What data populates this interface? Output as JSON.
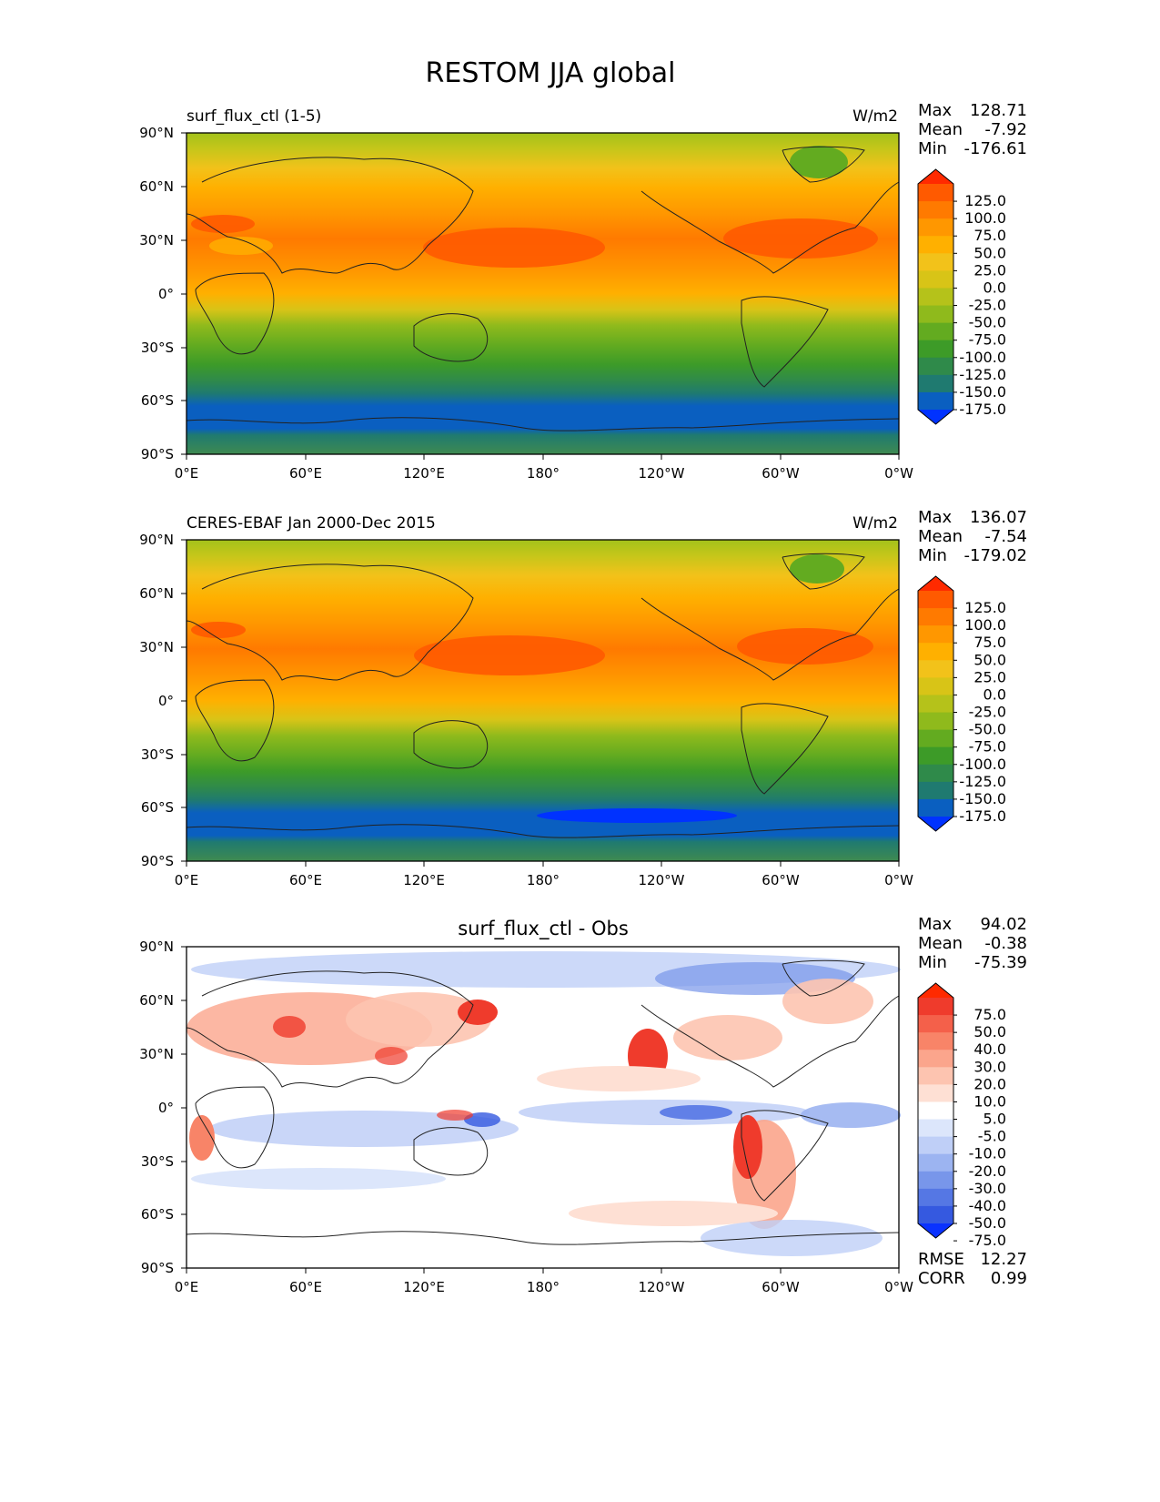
{
  "figure": {
    "title": "RESTOM JJA global"
  },
  "axes": {
    "xticks": [
      "0°E",
      "60°E",
      "120°E",
      "180°",
      "120°W",
      "60°W",
      "0°W"
    ],
    "yticks": [
      "90°N",
      "60°N",
      "30°N",
      "0°",
      "30°S",
      "60°S",
      "90°S"
    ]
  },
  "chart_data": [
    {
      "type": "heatmap",
      "title_left": "surf_flux_ctl (1-5)",
      "units": "W/m2",
      "stats": {
        "max_label": "Max",
        "max": "128.71",
        "mean_label": "Mean",
        "mean": "-7.92",
        "min_label": "Min",
        "min": "-176.61"
      },
      "colorbar": {
        "labels": [
          "125.0",
          "100.0",
          "75.0",
          "50.0",
          "25.0",
          "0.0",
          "-25.0",
          "-50.0",
          "-75.0",
          "-100.0",
          "-125.0",
          "-150.0",
          "-175.0"
        ],
        "colors": [
          "#ff2a00",
          "#ff5a00",
          "#ff7a00",
          "#ff9700",
          "#ffb000",
          "#f2c21a",
          "#d8c417",
          "#b5c21a",
          "#8fba1c",
          "#63ab20",
          "#3d9b28",
          "#2f8a4a",
          "#1f7a70",
          "#0a5fc0",
          "#0032ff"
        ]
      },
      "x_range": [
        0,
        360
      ],
      "y_range": [
        -90,
        90
      ]
    },
    {
      "type": "heatmap",
      "title_left": "CERES-EBAF Jan 2000-Dec 2015",
      "units": "W/m2",
      "stats": {
        "max_label": "Max",
        "max": "136.07",
        "mean_label": "Mean",
        "mean": "-7.54",
        "min_label": "Min",
        "min": "-179.02"
      },
      "colorbar": {
        "labels": [
          "125.0",
          "100.0",
          "75.0",
          "50.0",
          "25.0",
          "0.0",
          "-25.0",
          "-50.0",
          "-75.0",
          "-100.0",
          "-125.0",
          "-150.0",
          "-175.0"
        ],
        "colors": [
          "#ff2a00",
          "#ff5a00",
          "#ff7a00",
          "#ff9700",
          "#ffb000",
          "#f2c21a",
          "#d8c417",
          "#b5c21a",
          "#8fba1c",
          "#63ab20",
          "#3d9b28",
          "#2f8a4a",
          "#1f7a70",
          "#0a5fc0",
          "#0032ff"
        ]
      },
      "x_range": [
        0,
        360
      ],
      "y_range": [
        -90,
        90
      ]
    },
    {
      "type": "heatmap",
      "title": "surf_flux_ctl - Obs",
      "stats": {
        "max_label": "Max",
        "max": "94.02",
        "mean_label": "Mean",
        "mean": "-0.38",
        "min_label": "Min",
        "min": "-75.39"
      },
      "colorbar": {
        "labels": [
          "75.0",
          "50.0",
          "40.0",
          "30.0",
          "20.0",
          "10.0",
          "5.0",
          "-5.0",
          "-10.0",
          "-20.0",
          "-30.0",
          "-40.0",
          "-50.0",
          "-75.0"
        ],
        "colors": [
          "#ff2a00",
          "#ef3b2c",
          "#f4604a",
          "#f88468",
          "#fba58c",
          "#fdc4b0",
          "#fee0d4",
          "#ffffff",
          "#dce6fb",
          "#bfcff7",
          "#9cb4f1",
          "#7896ea",
          "#5577e4",
          "#3559e0",
          "#0a32ff"
        ]
      },
      "metrics": {
        "rmse_label": "RMSE",
        "rmse": "12.27",
        "corr_label": "CORR",
        "corr": "0.99"
      },
      "x_range": [
        0,
        360
      ],
      "y_range": [
        -90,
        90
      ]
    }
  ]
}
